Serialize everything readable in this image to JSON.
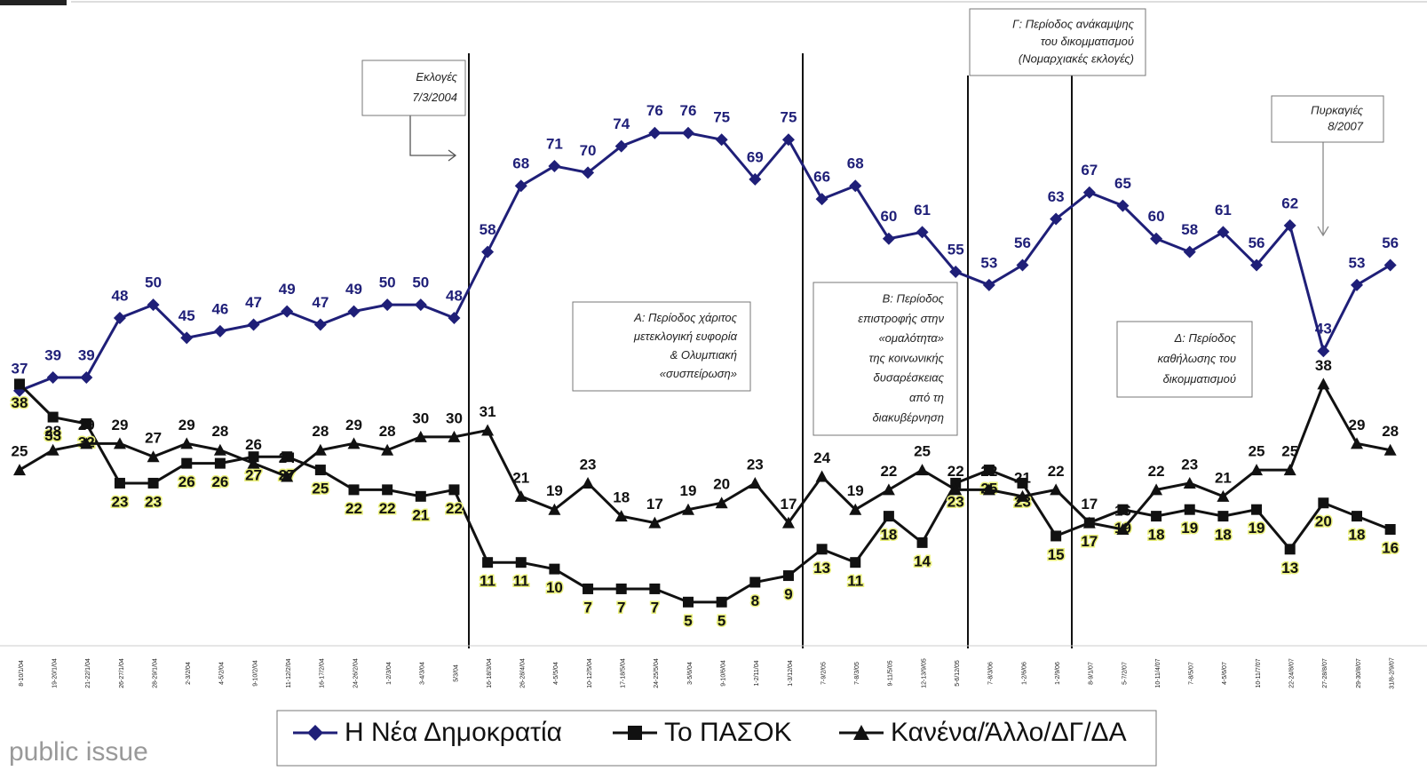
{
  "chart_data": {
    "type": "line",
    "categories": [
      "8-10/1/04",
      "19-20/1/04",
      "21-22/1/04",
      "26-27/1/04",
      "28-29/1/04",
      "2-3/2/04",
      "4-5/2/04",
      "9-10/2/04",
      "11-12/2/04",
      "16-17/2/04",
      "24-26/2/04",
      "1-2/3/04",
      "3-4/3/04",
      "5/3/04",
      "16-18/3/04",
      "26-28/4/04",
      "4-5/5/04",
      "10-12/5/04",
      "17-18/5/04",
      "24-25/5/04",
      "3-5/6/04",
      "9-10/6/04",
      "1-2/11/04",
      "1-3/12/04",
      "7-9/2/05",
      "7-8/3/05",
      "9-11/5/05",
      "12-13/9/05",
      "5-6/12/05",
      "7-8/3/06",
      "1-2/6/06",
      "1-2/9/06",
      "8-9/1/07",
      "5-7/2/07",
      "10-11/4/07",
      "7-8/5/07",
      "4-5/6/07",
      "10-11/7/07",
      "22-24/8/07",
      "27-28/8/07",
      "29-30/8/07",
      "31/8-2/9/07"
    ],
    "series": [
      {
        "name": "Η Νέα Δημοκρατία",
        "color": "#1f1f78",
        "marker": "diamond",
        "values": [
          37,
          39,
          39,
          48,
          50,
          45,
          46,
          47,
          49,
          47,
          49,
          50,
          50,
          48,
          58,
          68,
          71,
          70,
          74,
          76,
          76,
          75,
          69,
          75,
          66,
          68,
          60,
          61,
          55,
          53,
          56,
          63,
          67,
          65,
          60,
          58,
          61,
          56,
          62,
          43,
          53,
          56
        ]
      },
      {
        "name": "Το ΠΑΣΟΚ",
        "color": "#111111",
        "marker": "square",
        "values": [
          38,
          33,
          32,
          23,
          23,
          26,
          26,
          27,
          27,
          25,
          22,
          22,
          21,
          22,
          11,
          11,
          10,
          7,
          7,
          7,
          5,
          5,
          8,
          9,
          13,
          11,
          18,
          14,
          23,
          25,
          23,
          15,
          17,
          19,
          18,
          19,
          18,
          19,
          13,
          20,
          18,
          16
        ]
      },
      {
        "name": "Κανένα/Άλλο/ΔΓ/ΔΑ",
        "color": "#111111",
        "marker": "triangle",
        "values": [
          25,
          28,
          29,
          29,
          27,
          29,
          28,
          26,
          24,
          28,
          29,
          28,
          30,
          30,
          31,
          21,
          19,
          23,
          18,
          17,
          19,
          20,
          23,
          17,
          24,
          19,
          22,
          25,
          22,
          22,
          21,
          22,
          17,
          16,
          22,
          23,
          21,
          25,
          25,
          38,
          29,
          28
        ]
      }
    ],
    "ylim": [
      0,
      80
    ],
    "annotations": [
      {
        "lines": [
          "Εκλογές",
          "7/3/2004"
        ]
      },
      {
        "lines": [
          "Α: Περίοδος χάριτος",
          "μετεκλογική ευφορία",
          "& Ολυμπιακή",
          "«συσπείρωση»"
        ]
      },
      {
        "lines": [
          "Β: Περίοδος",
          "επιστροφής στην",
          "«ομαλότητα»",
          "της κοινωνικής",
          "δυσαρέσκειας",
          "από τη",
          "διακυβέρνηση"
        ]
      },
      {
        "lines": [
          "Γ: Περίοδος ανάκαμψης",
          "του δικομματισμού",
          "(Νομαρχιακές εκλογές)"
        ]
      },
      {
        "lines": [
          "Δ: Περίοδος",
          "καθήλωσης του",
          "δικομματισμού"
        ]
      },
      {
        "lines": [
          "Πυρκαγιές",
          "8/2007"
        ]
      }
    ],
    "logo": "public issue"
  }
}
